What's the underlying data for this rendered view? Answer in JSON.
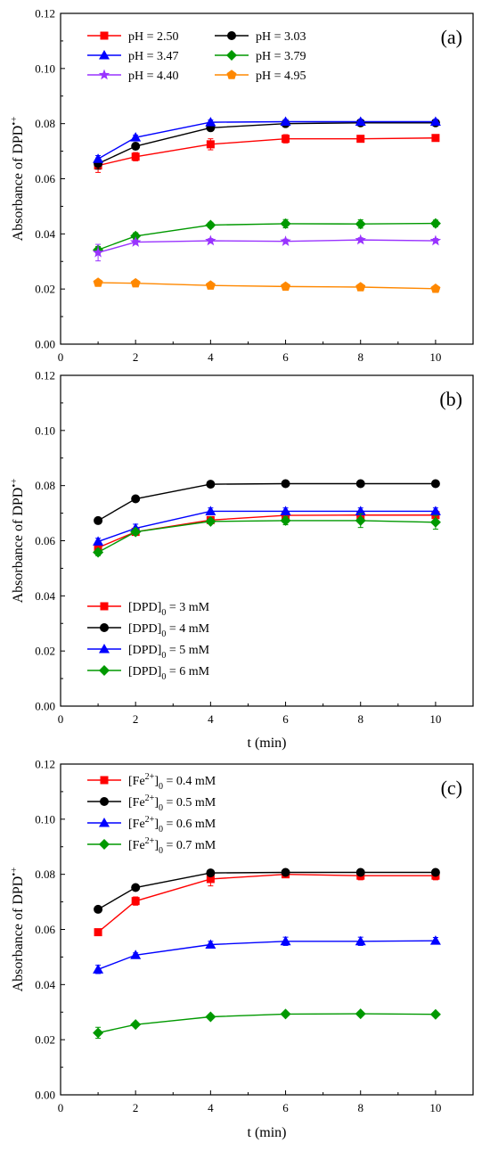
{
  "chart_data": [
    {
      "type": "line",
      "panel_label": "(a)",
      "xlabel": "",
      "ylabel": "Absorbance of DPD•+",
      "ylabel_text": "Absorbance of  DPD",
      "ylabel_sup": "•+",
      "xlim": [
        0,
        11
      ],
      "ylim": [
        0,
        0.12
      ],
      "xticks": [
        "0",
        "2",
        "4",
        "6",
        "8",
        "10"
      ],
      "yticks": [
        "0.00",
        "0.02",
        "0.04",
        "0.06",
        "0.08",
        "0.10",
        "0.12"
      ],
      "x": [
        1,
        2,
        4,
        6,
        8,
        10
      ],
      "legend_position": "top-left",
      "legend_columns": 2,
      "grid": false,
      "series": [
        {
          "name": "pH = 2.50",
          "color": "#ff0000",
          "marker": "square",
          "values": [
            0.0648,
            0.068,
            0.0725,
            0.0745,
            0.0745,
            0.0748
          ],
          "errors": [
            0.0025,
            0.0015,
            0.002,
            0.0015,
            0.0012,
            0.001
          ]
        },
        {
          "name": "pH = 3.03",
          "color": "#000000",
          "marker": "circle",
          "values": [
            0.0655,
            0.0718,
            0.0785,
            0.08,
            0.0803,
            0.0803
          ],
          "errors": [
            0.002,
            0.0012,
            0.0008,
            0.0008,
            0.0008,
            0.0008
          ]
        },
        {
          "name": "pH = 3.47",
          "color": "#0000ff",
          "marker": "triangle",
          "values": [
            0.0672,
            0.075,
            0.0805,
            0.0807,
            0.0807,
            0.0807
          ],
          "errors": [
            0.0012,
            0.0008,
            0.0008,
            0.0008,
            0.0008,
            0.0008
          ]
        },
        {
          "name": "pH = 3.79",
          "color": "#009900",
          "marker": "diamond",
          "values": [
            0.0342,
            0.0392,
            0.0432,
            0.0437,
            0.0436,
            0.0438
          ],
          "errors": [
            0.0012,
            0.0012,
            0.001,
            0.0015,
            0.0015,
            0.0012
          ]
        },
        {
          "name": "pH = 4.40",
          "color": "#9933ff",
          "marker": "star",
          "values": [
            0.0332,
            0.037,
            0.0375,
            0.0373,
            0.0378,
            0.0375
          ],
          "errors": [
            0.003,
            0.0008,
            0.0008,
            0.0008,
            0.0008,
            0.0008
          ]
        },
        {
          "name": "pH = 4.95",
          "color": "#ff8800",
          "marker": "pentagon",
          "values": [
            0.0223,
            0.0221,
            0.0213,
            0.0209,
            0.0207,
            0.0201
          ],
          "errors": [
            0.0006,
            0.0006,
            0.0006,
            0.0006,
            0.0006,
            0.0006
          ]
        }
      ]
    },
    {
      "type": "line",
      "panel_label": "(b)",
      "xlabel": "t (min)",
      "ylabel": "Absorbance of DPD•+",
      "ylabel_text": "Absorbance of  DPD",
      "ylabel_sup": "•+",
      "xlim": [
        0,
        11
      ],
      "ylim": [
        0,
        0.12
      ],
      "xticks": [
        "0",
        "2",
        "4",
        "6",
        "8",
        "10"
      ],
      "yticks": [
        "0.00",
        "0.02",
        "0.04",
        "0.06",
        "0.08",
        "0.10",
        "0.12"
      ],
      "x": [
        1,
        2,
        4,
        6,
        8,
        10
      ],
      "legend_position": "bottom-left",
      "legend_columns": 1,
      "grid": false,
      "series": [
        {
          "name": "[DPD]0 = 3 mM",
          "label_main": "[DPD]",
          "label_sub": "0",
          "label_sup": "",
          "label_tail": " = 3 mM",
          "color": "#ff0000",
          "marker": "square",
          "values": [
            0.0575,
            0.0632,
            0.0675,
            0.0692,
            0.0693,
            0.0693
          ],
          "errors": [
            0.0015,
            0.001,
            0.001,
            0.001,
            0.001,
            0.001
          ]
        },
        {
          "name": "[DPD]0 = 4 mM",
          "label_main": "[DPD]",
          "label_sub": "0",
          "label_sup": "",
          "label_tail": " = 4 mM",
          "color": "#000000",
          "marker": "circle",
          "values": [
            0.0673,
            0.0752,
            0.0805,
            0.0807,
            0.0807,
            0.0807
          ],
          "errors": [
            0.0006,
            0.0006,
            0.0008,
            0.0006,
            0.0006,
            0.0006
          ]
        },
        {
          "name": "[DPD]0 = 5 mM",
          "label_main": "[DPD]",
          "label_sub": "0",
          "label_sup": "",
          "label_tail": " = 5 mM",
          "color": "#0000ff",
          "marker": "triangle",
          "values": [
            0.0597,
            0.0645,
            0.0707,
            0.0707,
            0.0707,
            0.0707
          ],
          "errors": [
            0.0012,
            0.0015,
            0.0012,
            0.0012,
            0.0012,
            0.0012
          ]
        },
        {
          "name": "[DPD]0 = 6 mM",
          "label_main": "[DPD]",
          "label_sub": "0",
          "label_sup": "",
          "label_tail": " = 6 mM",
          "color": "#009900",
          "marker": "diamond",
          "values": [
            0.0558,
            0.0632,
            0.067,
            0.0673,
            0.0673,
            0.0667
          ],
          "errors": [
            0.0012,
            0.001,
            0.0008,
            0.0015,
            0.0025,
            0.0025
          ]
        }
      ]
    },
    {
      "type": "line",
      "panel_label": "(c)",
      "xlabel": "t (min)",
      "ylabel": "Absorbance of DPD•+",
      "ylabel_text": "Absorbance of  DPD",
      "ylabel_sup": "•+",
      "xlim": [
        0,
        11
      ],
      "ylim": [
        0,
        0.12
      ],
      "xticks": [
        "0",
        "2",
        "4",
        "6",
        "8",
        "10"
      ],
      "yticks": [
        "0.00",
        "0.02",
        "0.04",
        "0.06",
        "0.08",
        "0.10",
        "0.12"
      ],
      "x": [
        1,
        2,
        4,
        6,
        8,
        10
      ],
      "legend_position": "top-left",
      "legend_columns": 1,
      "grid": false,
      "series": [
        {
          "name": "[Fe2+]0 = 0.4 mM",
          "label_main": "[Fe",
          "label_sub": "",
          "label_sup": "2+",
          "label_mid": "]",
          "label_sub2": "0",
          "label_tail": " = 0.4 mM",
          "color": "#ff0000",
          "marker": "square",
          "values": [
            0.059,
            0.0703,
            0.0783,
            0.08,
            0.0795,
            0.0795
          ],
          "errors": [
            0.0008,
            0.0015,
            0.0025,
            0.0012,
            0.0015,
            0.0015
          ]
        },
        {
          "name": "[Fe2+]0 = 0.5 mM",
          "label_main": "[Fe",
          "label_sub": "",
          "label_sup": "2+",
          "label_mid": "]",
          "label_sub2": "0",
          "label_tail": " = 0.5 mM",
          "color": "#000000",
          "marker": "circle",
          "values": [
            0.0673,
            0.0752,
            0.0805,
            0.0807,
            0.0807,
            0.0807
          ],
          "errors": [
            0.0006,
            0.0006,
            0.0008,
            0.0006,
            0.0006,
            0.0006
          ]
        },
        {
          "name": "[Fe2+]0 = 0.6 mM",
          "label_main": "[Fe",
          "label_sub": "",
          "label_sup": "2+",
          "label_mid": "]",
          "label_sub2": "0",
          "label_tail": " = 0.6 mM",
          "color": "#0000ff",
          "marker": "triangle",
          "values": [
            0.0455,
            0.0507,
            0.0545,
            0.0557,
            0.0557,
            0.0559
          ],
          "errors": [
            0.0015,
            0.0008,
            0.0012,
            0.0015,
            0.0015,
            0.0012
          ]
        },
        {
          "name": "[Fe2+]0 = 0.7 mM",
          "label_main": "[Fe",
          "label_sub": "",
          "label_sup": "2+",
          "label_mid": "]",
          "label_sub2": "0",
          "label_tail": " = 0.7 mM",
          "color": "#009900",
          "marker": "diamond",
          "values": [
            0.0225,
            0.0255,
            0.0283,
            0.0293,
            0.0294,
            0.0292
          ],
          "errors": [
            0.002,
            0.0006,
            0.0008,
            0.0006,
            0.0006,
            0.0006
          ]
        }
      ]
    }
  ]
}
